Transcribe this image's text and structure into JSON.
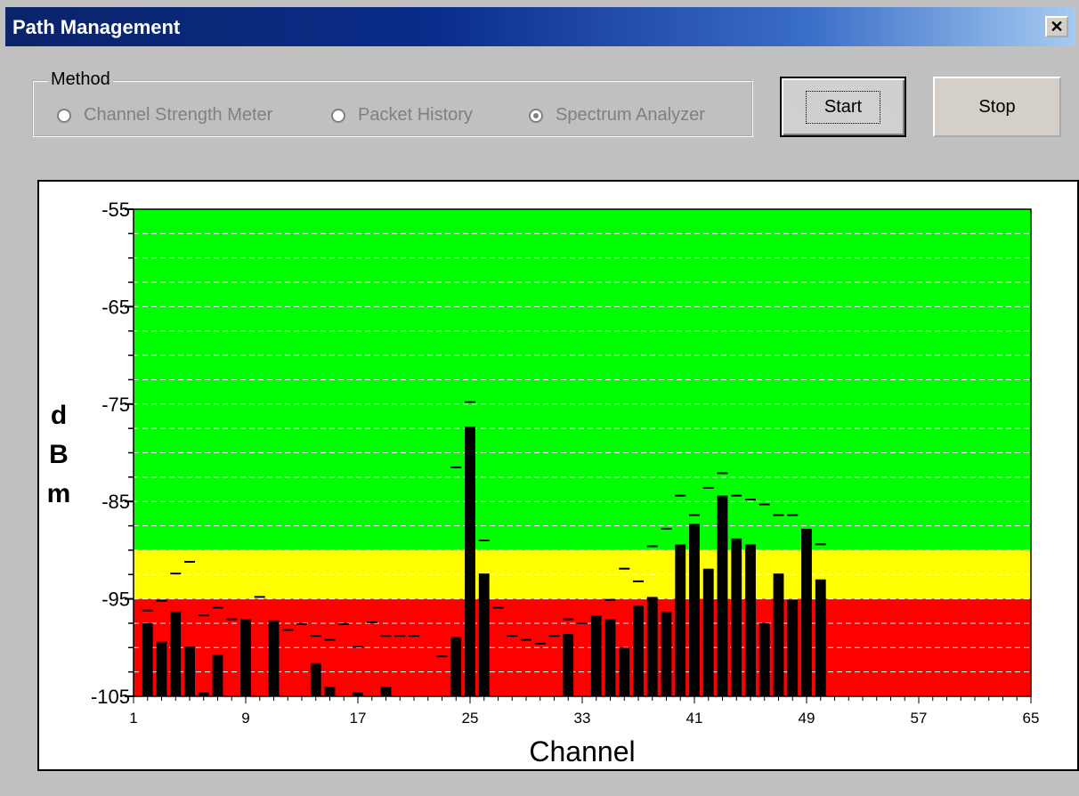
{
  "window": {
    "title": "Path Management",
    "close_label": "✕"
  },
  "method": {
    "legend": "Method",
    "options": [
      {
        "label": "Channel Strength Meter",
        "selected": false,
        "enabled": false
      },
      {
        "label": "Packet History",
        "selected": false,
        "enabled": false
      },
      {
        "label": "Spectrum Analyzer",
        "selected": true,
        "enabled": false
      }
    ]
  },
  "buttons": {
    "start_label": "Start",
    "stop_label": "Stop"
  },
  "colors": {
    "good": "#00ff00",
    "marginal": "#ffff00",
    "poor": "#ff0000",
    "bar": "#000000",
    "grid": "#ffffff"
  },
  "chart_data": {
    "type": "bar",
    "xlabel": "Channel",
    "ylabel": "dBm",
    "ylim": [
      -105,
      -55
    ],
    "xlim": [
      1,
      65
    ],
    "xticks": [
      1,
      9,
      17,
      25,
      33,
      41,
      49,
      57,
      65
    ],
    "yticks": [
      -55,
      -65,
      -75,
      -85,
      -95,
      -105
    ],
    "zones": [
      {
        "name": "good",
        "from": -90,
        "to": -55,
        "color": "#00ff00"
      },
      {
        "name": "marginal",
        "from": -95,
        "to": -90,
        "color": "#ffff00"
      },
      {
        "name": "poor",
        "from": -105,
        "to": -95,
        "color": "#ff0000"
      }
    ],
    "grid": true,
    "bars": [
      {
        "channel": 2,
        "value": -97.5,
        "peak": -96.2
      },
      {
        "channel": 3,
        "value": -99.4,
        "peak": -95.2
      },
      {
        "channel": 4,
        "value": -96.3,
        "peak": -92.4
      },
      {
        "channel": 5,
        "value": -99.9,
        "peak": -91.2
      },
      {
        "channel": 6,
        "value": -104.6,
        "peak": -96.7
      },
      {
        "channel": 7,
        "value": -100.7,
        "peak": -95.9
      },
      {
        "channel": 8,
        "value": null,
        "peak": -97.1
      },
      {
        "channel": 9,
        "value": -97.1,
        "peak": null
      },
      {
        "channel": 10,
        "value": null,
        "peak": -94.8
      },
      {
        "channel": 11,
        "value": -97.3,
        "peak": -97.3
      },
      {
        "channel": 12,
        "value": null,
        "peak": -98.2
      },
      {
        "channel": 13,
        "value": null,
        "peak": -97.6
      },
      {
        "channel": 14,
        "value": -101.6,
        "peak": -98.8
      },
      {
        "channel": 15,
        "value": -104.0,
        "peak": -99.2
      },
      {
        "channel": 16,
        "value": null,
        "peak": -97.6
      },
      {
        "channel": 17,
        "value": -104.6,
        "peak": -99.9
      },
      {
        "channel": 18,
        "value": null,
        "peak": -97.4
      },
      {
        "channel": 19,
        "value": -104.0,
        "peak": -98.8
      },
      {
        "channel": 20,
        "value": null,
        "peak": -98.8
      },
      {
        "channel": 21,
        "value": null,
        "peak": -98.8
      },
      {
        "channel": 23,
        "value": null,
        "peak": -100.9
      },
      {
        "channel": 24,
        "value": -98.9,
        "peak": -81.5
      },
      {
        "channel": 25,
        "value": -77.3,
        "peak": -74.8
      },
      {
        "channel": 26,
        "value": -92.4,
        "peak": -89.0
      },
      {
        "channel": 27,
        "value": null,
        "peak": -95.9
      },
      {
        "channel": 28,
        "value": null,
        "peak": -98.8
      },
      {
        "channel": 29,
        "value": null,
        "peak": -99.2
      },
      {
        "channel": 30,
        "value": null,
        "peak": -99.6
      },
      {
        "channel": 31,
        "value": null,
        "peak": -98.8
      },
      {
        "channel": 32,
        "value": -98.6,
        "peak": -97.1
      },
      {
        "channel": 33,
        "value": null,
        "peak": -97.5
      },
      {
        "channel": 34,
        "value": -96.7,
        "peak": null
      },
      {
        "channel": 35,
        "value": -97.1,
        "peak": -95.1
      },
      {
        "channel": 36,
        "value": -100.0,
        "peak": -91.9
      },
      {
        "channel": 37,
        "value": -95.7,
        "peak": -93.2
      },
      {
        "channel": 38,
        "value": -94.8,
        "peak": -89.6
      },
      {
        "channel": 39,
        "value": -96.3,
        "peak": -87.8
      },
      {
        "channel": 40,
        "value": -89.4,
        "peak": -84.4
      },
      {
        "channel": 41,
        "value": -87.3,
        "peak": -86.4
      },
      {
        "channel": 42,
        "value": -91.9,
        "peak": -83.6
      },
      {
        "channel": 43,
        "value": -84.4,
        "peak": -82.1
      },
      {
        "channel": 44,
        "value": -88.8,
        "peak": -84.4
      },
      {
        "channel": 45,
        "value": -89.4,
        "peak": -84.8
      },
      {
        "channel": 46,
        "value": -97.5,
        "peak": -85.3
      },
      {
        "channel": 47,
        "value": -92.4,
        "peak": -86.4
      },
      {
        "channel": 48,
        "value": -95.1,
        "peak": -86.4
      },
      {
        "channel": 49,
        "value": -87.8,
        "peak": -95.1
      },
      {
        "channel": 50,
        "value": -93.0,
        "peak": -89.4
      }
    ]
  }
}
